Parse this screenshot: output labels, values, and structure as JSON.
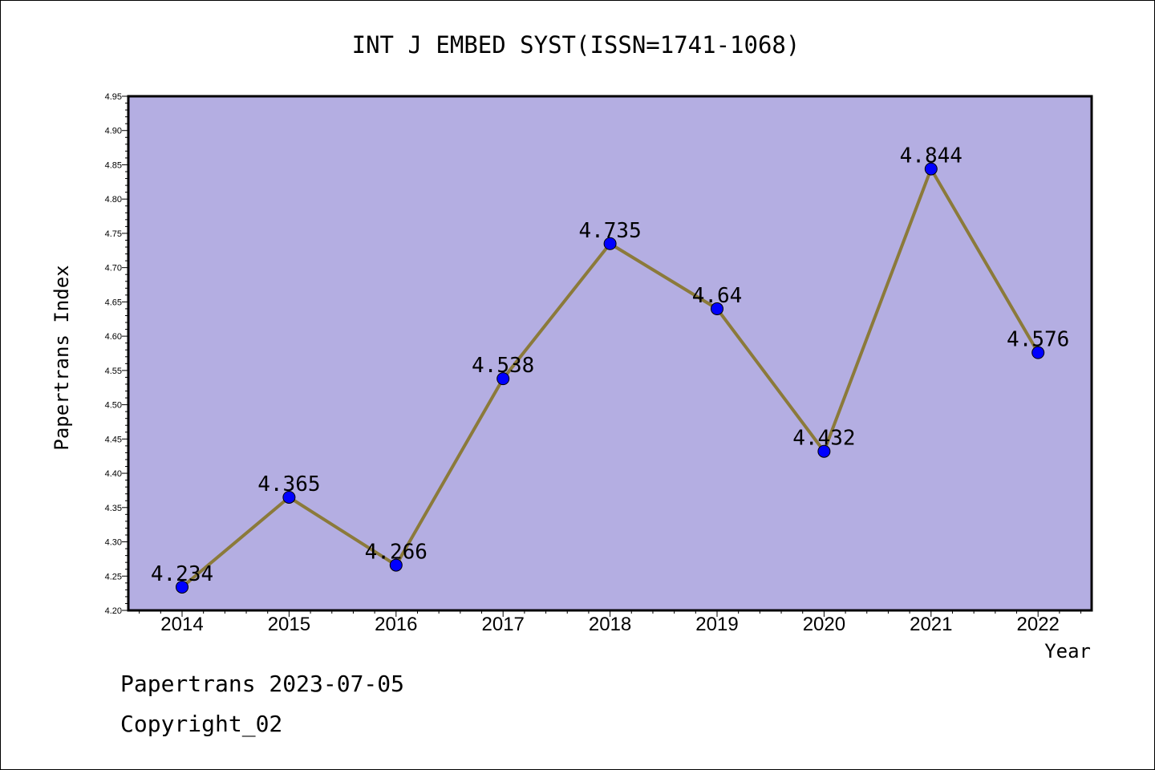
{
  "chart_data": {
    "type": "line",
    "title": "INT J EMBED SYST(ISSN=1741-1068)",
    "xlabel": "Year",
    "ylabel": "Papertrans Index",
    "categories": [
      "2014",
      "2015",
      "2016",
      "2017",
      "2018",
      "2019",
      "2020",
      "2021",
      "2022"
    ],
    "values": [
      4.234,
      4.365,
      4.266,
      4.538,
      4.735,
      4.64,
      4.432,
      4.844,
      4.576
    ],
    "data_labels": [
      "4.234",
      "4.365",
      "4.266",
      "4.538",
      "4.735",
      "4.64",
      "4.432",
      "4.844",
      "4.576"
    ],
    "ylim": [
      4.2,
      4.95
    ],
    "y_ticks": [
      "4.20",
      "4.25",
      "4.30",
      "4.35",
      "4.40",
      "4.45",
      "4.50",
      "4.55",
      "4.60",
      "4.65",
      "4.70",
      "4.75",
      "4.80",
      "4.85",
      "4.90",
      "4.95"
    ],
    "grid": false,
    "legend": "none",
    "colors": {
      "plot_background": "#b4aee2",
      "line": "#8b7a3a",
      "marker": "#0000ff"
    }
  },
  "footer": {
    "line1": "Papertrans 2023-07-05",
    "line2": "Copyright_02"
  }
}
